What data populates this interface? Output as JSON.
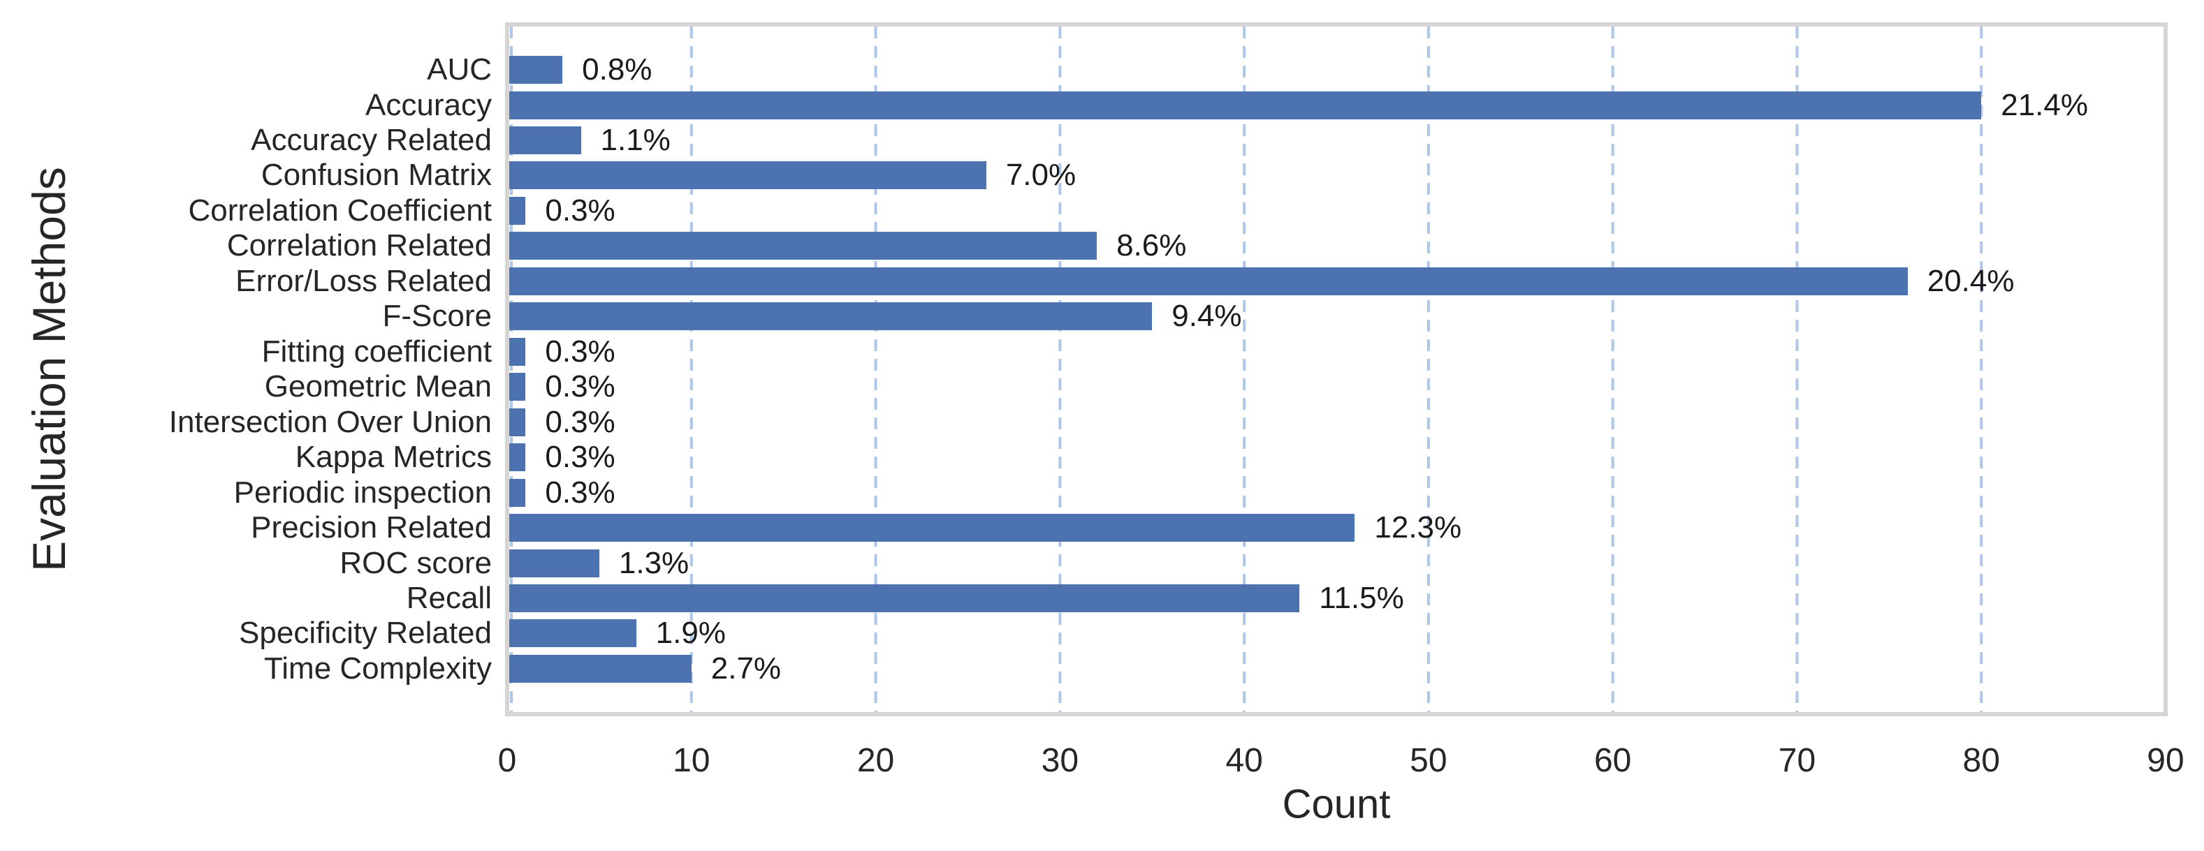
{
  "chart_data": {
    "type": "bar",
    "orientation": "horizontal",
    "title": "",
    "xlabel": "Count",
    "ylabel": "Evaluation Methods",
    "xlim": [
      0,
      90
    ],
    "xticks": [
      0,
      10,
      20,
      30,
      40,
      50,
      60,
      70,
      80,
      90
    ],
    "grid": "vertical dashed gridlines at each x tick",
    "legend_position": "none",
    "categories": [
      "AUC",
      "Accuracy",
      "Accuracy Related",
      "Confusion Matrix",
      "Correlation Coefficient",
      "Correlation Related",
      "Error/Loss Related",
      "F-Score",
      "Fitting coefficient",
      "Geometric Mean",
      "Intersection Over Union",
      "Kappa Metrics",
      "Periodic inspection",
      "Precision Related",
      "ROC score",
      "Recall",
      "Specificity Related",
      "Time Complexity"
    ],
    "values": [
      3,
      80,
      4,
      26,
      1,
      32,
      76,
      35,
      1,
      1,
      1,
      1,
      1,
      46,
      5,
      43,
      7,
      10
    ],
    "value_labels": [
      "0.8%",
      "21.4%",
      "1.1%",
      "7.0%",
      "0.3%",
      "8.6%",
      "20.4%",
      "9.4%",
      "0.3%",
      "0.3%",
      "0.3%",
      "0.3%",
      "0.3%",
      "12.3%",
      "1.3%",
      "11.5%",
      "1.9%",
      "2.7%"
    ],
    "colors": {
      "bar": "#4c72b0",
      "gridline": "#aec6e8",
      "plot_border": "#d5d5d5",
      "tick_text": "#262626",
      "annotation_text": "#1a1a1a",
      "background": "#ffffff"
    }
  }
}
